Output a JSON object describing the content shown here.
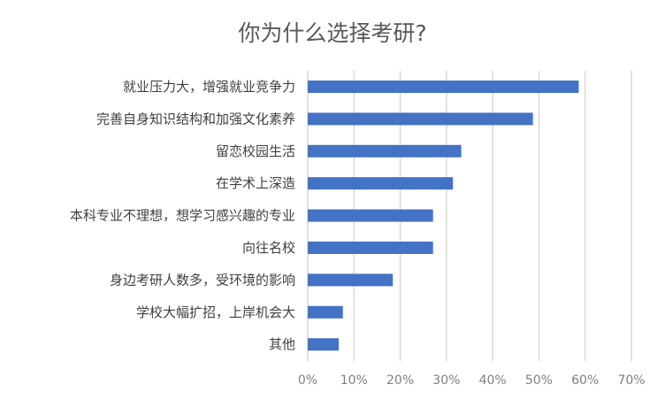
{
  "chart_data": {
    "type": "bar",
    "orientation": "horizontal",
    "title": "你为什么选择考研?",
    "categories": [
      "就业压力大，增强就业竞争力",
      "完善自身知识结构和加强文化素养",
      "留恋校园生活",
      "在学术上深造",
      "本科专业不理想，想学习感兴趣的专业",
      "向往名校",
      "身边考研人数多，受环境的影响",
      "学校大幅扩招，上岸机会大",
      "其他"
    ],
    "values": [
      58.6,
      48.7,
      33.2,
      31.4,
      27.1,
      27.1,
      18.4,
      7.6,
      6.7
    ],
    "unit": "%",
    "xlim": [
      0,
      70
    ],
    "xticks": [
      "0%",
      "10%",
      "20%",
      "30%",
      "40%",
      "50%",
      "60%",
      "70%"
    ],
    "grid": "vertical",
    "bar_color": "#4472c4",
    "grid_color": "#d9d9d9"
  }
}
